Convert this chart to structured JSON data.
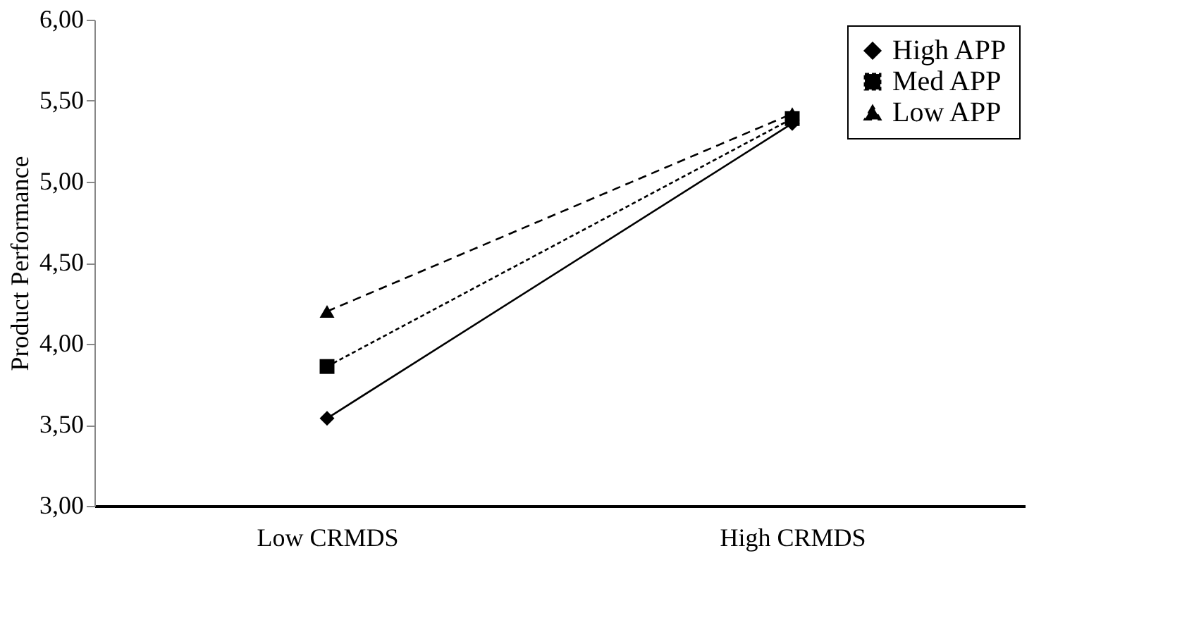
{
  "chart_data": {
    "type": "line",
    "ylabel": "Product  Performance",
    "categories": [
      "Low CRMDS",
      "High CRMDS"
    ],
    "series": [
      {
        "name": "High APP",
        "color": "#000000",
        "values": [
          3.54,
          5.36
        ],
        "marker": "diamond",
        "line_style": "solid"
      },
      {
        "name": "Med APP",
        "color": "#000000",
        "values": [
          3.86,
          5.39
        ],
        "marker": "square",
        "line_style": "dotted"
      },
      {
        "name": "Low APP",
        "color": "#000000",
        "values": [
          4.2,
          5.42
        ],
        "marker": "triangle",
        "line_style": "dashed"
      }
    ],
    "ylim": [
      3,
      6
    ],
    "yticks": [
      {
        "value": 3,
        "label": "3,00"
      },
      {
        "value": 3.5,
        "label": "3,50"
      },
      {
        "value": 4,
        "label": "4,00"
      },
      {
        "value": 4.5,
        "label": "4,50"
      },
      {
        "value": 5,
        "label": "5,00"
      },
      {
        "value": 5.5,
        "label": "5,50"
      },
      {
        "value": 6,
        "label": "6,00"
      }
    ],
    "grid": false,
    "legend": "top right"
  }
}
